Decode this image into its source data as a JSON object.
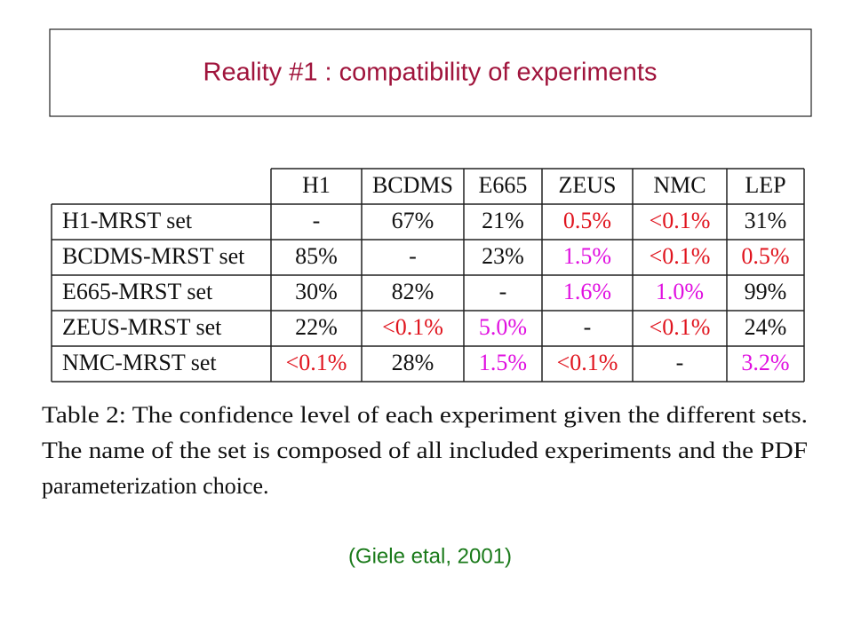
{
  "header": {
    "title": "Reality #1 : compatibility of experiments"
  },
  "table": {
    "columns": [
      "H1",
      "BCDMS",
      "E665",
      "ZEUS",
      "NMC",
      "LEP"
    ],
    "rows": [
      {
        "label": "H1-MRST set",
        "cells": [
          {
            "text": "-"
          },
          {
            "text": "67%"
          },
          {
            "text": "21%"
          },
          {
            "text": "0.5%",
            "color": "#e0141e"
          },
          {
            "text": "<0.1%",
            "color": "#e0141e"
          },
          {
            "text": "31%"
          }
        ]
      },
      {
        "label": "BCDMS-MRST set",
        "cells": [
          {
            "text": "85%"
          },
          {
            "text": "-"
          },
          {
            "text": "23%"
          },
          {
            "text": "1.5%",
            "color": "#e010e0"
          },
          {
            "text": "<0.1%",
            "color": "#e0141e"
          },
          {
            "text": "0.5%",
            "color": "#e0141e"
          }
        ]
      },
      {
        "label": "E665-MRST set",
        "cells": [
          {
            "text": "30%"
          },
          {
            "text": "82%"
          },
          {
            "text": "-"
          },
          {
            "text": "1.6%",
            "color": "#e010e0"
          },
          {
            "text": "1.0%",
            "color": "#e010e0"
          },
          {
            "text": "99%"
          }
        ]
      },
      {
        "label": "ZEUS-MRST set",
        "cells": [
          {
            "text": "22%"
          },
          {
            "text": "<0.1%",
            "color": "#e0141e"
          },
          {
            "text": "5.0%",
            "color": "#e010e0"
          },
          {
            "text": "-"
          },
          {
            "text": "<0.1%",
            "color": "#e0141e"
          },
          {
            "text": "24%"
          }
        ]
      },
      {
        "label": "NMC-MRST set",
        "cells": [
          {
            "text": "<0.1%",
            "color": "#e0141e"
          },
          {
            "text": "28%"
          },
          {
            "text": "1.5%",
            "color": "#e010e0"
          },
          {
            "text": "<0.1%",
            "color": "#e0141e"
          },
          {
            "text": "-"
          },
          {
            "text": "3.2%",
            "color": "#e010e0"
          }
        ]
      }
    ]
  },
  "caption": {
    "lines": [
      "Table 2:  The confidence level of each experiment given the different sets.",
      "The name of the set is composed of all included experiments and the PDF",
      "parameterization choice."
    ]
  },
  "citation": "(Giele etal, 2001)"
}
